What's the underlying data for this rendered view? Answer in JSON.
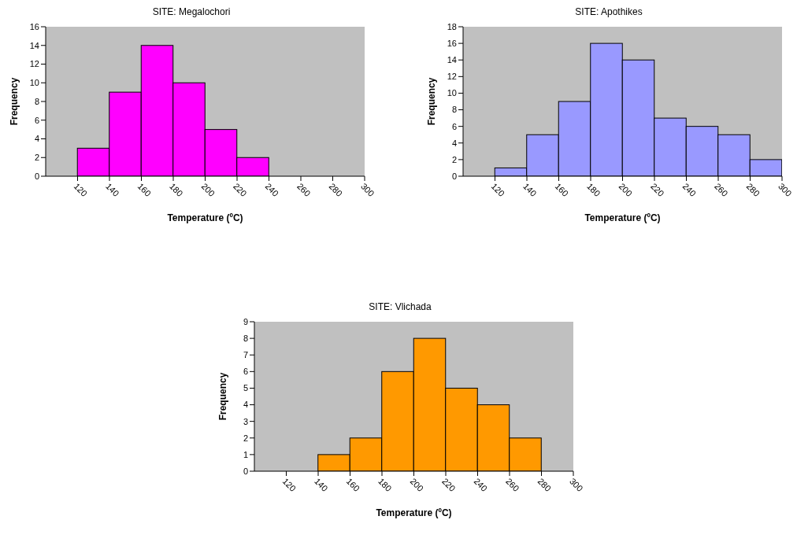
{
  "chart_data": [
    {
      "type": "histogram",
      "title": "SITE: Megalochori",
      "xlabel": "Temperature (ºC)",
      "ylabel": "Frequency",
      "bins": [
        120,
        140,
        160,
        180,
        200,
        220,
        240
      ],
      "values": [
        3,
        9,
        14,
        10,
        5,
        2
      ],
      "color": "#ff00ff",
      "xlim": [
        100,
        300
      ],
      "xticks": [
        120,
        140,
        160,
        180,
        200,
        220,
        240,
        260,
        280,
        300
      ],
      "ylim": [
        0,
        16
      ],
      "yticks": [
        0,
        2,
        4,
        6,
        8,
        10,
        12,
        14,
        16
      ]
    },
    {
      "type": "histogram",
      "title": "SITE: Apothikes",
      "xlabel": "Temperature (ºC)",
      "ylabel": "Frequency",
      "bins": [
        120,
        140,
        160,
        180,
        200,
        220,
        240,
        260,
        280,
        300
      ],
      "values": [
        1,
        5,
        9,
        16,
        14,
        7,
        6,
        5,
        2
      ],
      "color": "#9999ff",
      "xlim": [
        100,
        300
      ],
      "xticks": [
        120,
        140,
        160,
        180,
        200,
        220,
        240,
        260,
        280,
        300
      ],
      "ylim": [
        0,
        18
      ],
      "yticks": [
        0,
        2,
        4,
        6,
        8,
        10,
        12,
        14,
        16,
        18
      ]
    },
    {
      "type": "histogram",
      "title": "SITE: Vlichada",
      "xlabel": "Temperature (ºC)",
      "ylabel": "Frequency",
      "bins": [
        140,
        160,
        180,
        200,
        220,
        240,
        260,
        280
      ],
      "values": [
        1,
        2,
        6,
        8,
        5,
        4,
        2
      ],
      "color": "#ff9900",
      "xlim": [
        100,
        300
      ],
      "xticks": [
        120,
        140,
        160,
        180,
        200,
        220,
        240,
        260,
        280,
        300
      ],
      "ylim": [
        0,
        9
      ],
      "yticks": [
        0,
        1,
        2,
        3,
        4,
        5,
        6,
        7,
        8,
        9
      ]
    }
  ]
}
